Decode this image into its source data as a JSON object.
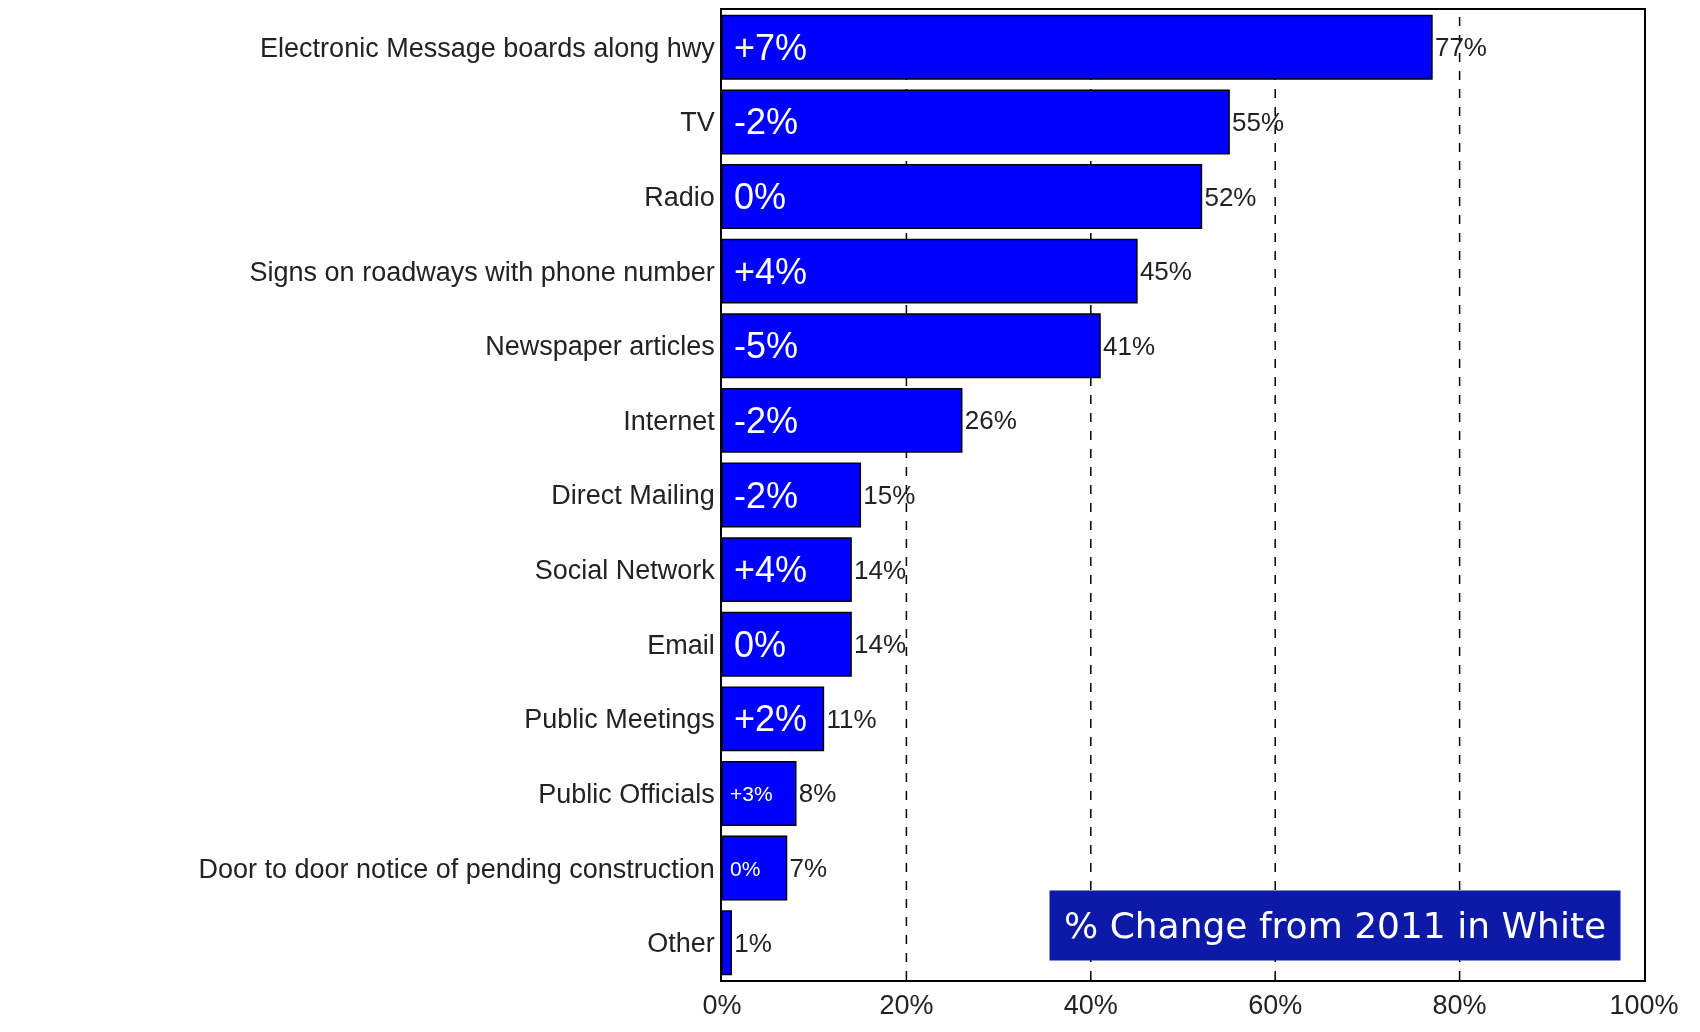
{
  "chart_data": {
    "type": "bar",
    "orientation": "horizontal",
    "categories": [
      "Electronic Message boards along hwy",
      "TV",
      "Radio",
      "Signs on roadways with phone number",
      "Newspaper articles",
      "Internet",
      "Direct Mailing",
      "Social Network",
      "Email",
      "Public Meetings",
      "Public Officials",
      "Door to door notice of pending construction",
      "Other"
    ],
    "values": [
      77,
      55,
      52,
      45,
      41,
      26,
      15,
      14,
      14,
      11,
      8,
      7,
      1
    ],
    "value_labels": [
      "77%",
      "55%",
      "52%",
      "45%",
      "41%",
      "26%",
      "15%",
      "14%",
      "14%",
      "11%",
      "8%",
      "7%",
      "1%"
    ],
    "color": "#0000ff",
    "xlim": [
      0,
      100
    ],
    "xticks": [
      {
        "value": 0,
        "label": "0%"
      },
      {
        "value": 20,
        "label": "20%"
      },
      {
        "value": 40,
        "label": "40%"
      },
      {
        "value": 60,
        "label": "60%"
      },
      {
        "value": 80,
        "label": "80%"
      },
      {
        "value": 100,
        "label": "100%"
      }
    ],
    "grid": "x",
    "annotations": [
      {
        "text": "+7%",
        "y": "Electronic Message boards along hwy"
      },
      {
        "text": "-2%",
        "y": "TV"
      },
      {
        "text": "0%",
        "y": "Radio"
      },
      {
        "text": "+4%",
        "y": "Signs on roadways with phone number"
      },
      {
        "text": "-5%",
        "y": "Newspaper articles"
      },
      {
        "text": "-2%",
        "y": "Internet"
      },
      {
        "text": "-2%",
        "y": "Direct Mailing"
      },
      {
        "text": "+4%",
        "y": "Social Network"
      },
      {
        "text": "0%",
        "y": "Email"
      },
      {
        "text": "+2%",
        "y": "Public Meetings"
      },
      {
        "text": "+3%",
        "y": "Public Officials"
      },
      {
        "text": "0%",
        "y": "Door to door notice of pending construction"
      },
      "% Change from 2011 in White"
    ]
  }
}
